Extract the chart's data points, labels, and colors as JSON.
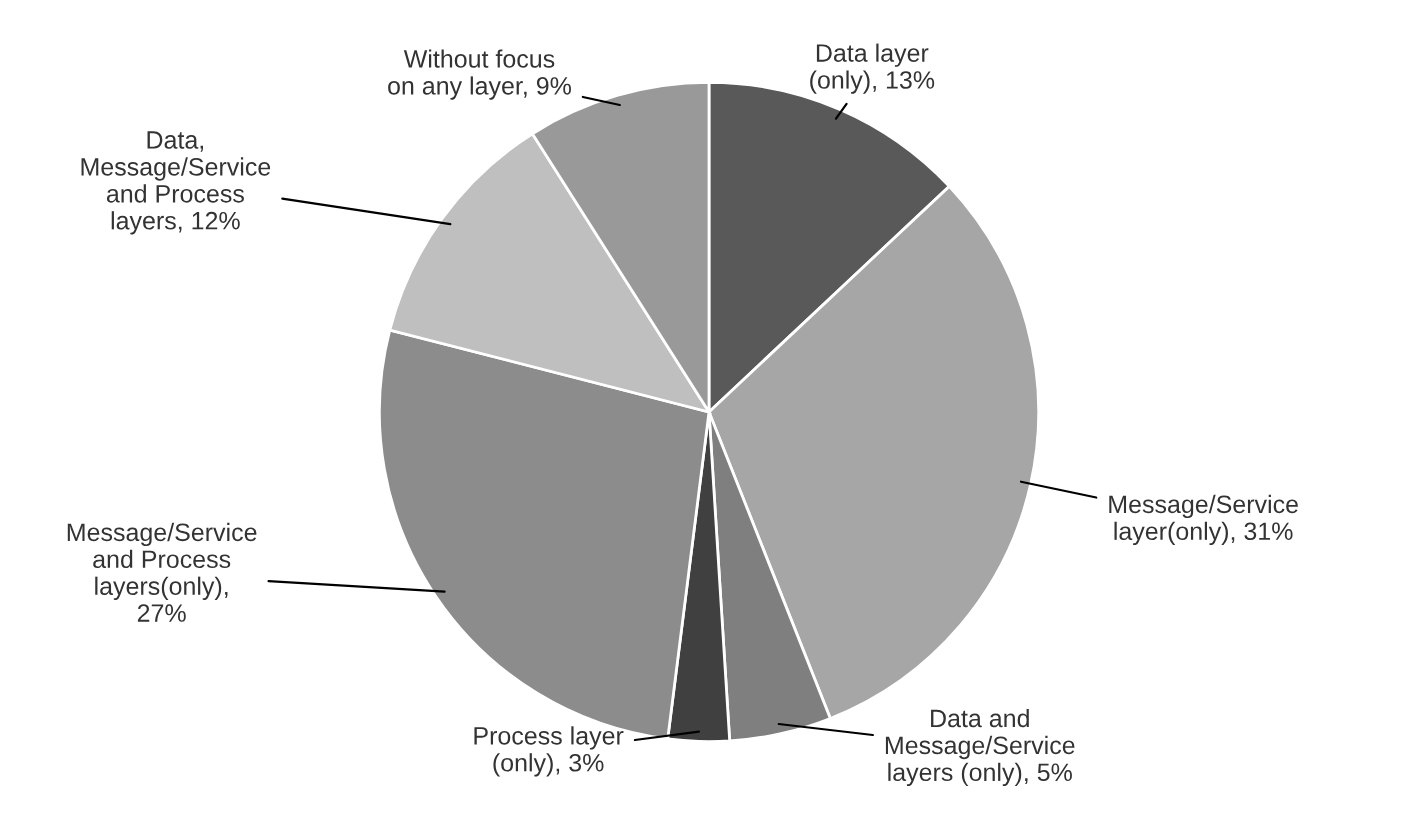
{
  "chart_data": {
    "type": "pie",
    "categories": [
      "Data layer\n(only), 13%",
      "Message/Service\nlayer(only), 31%",
      "Data and\nMessage/Service\nlayers (only), 5%",
      "Process layer\n(only), 3%",
      "Message/Service\nand Process\nlayers(only),\n27%",
      "Data,\nMessage/Service\nand Process\nlayers, 12%",
      "Without focus\non any layer, 9%"
    ],
    "values": [
      13,
      31,
      5,
      3,
      27,
      12,
      9
    ],
    "colors": [
      "#595959",
      "#a6a6a6",
      "#7f7f7f",
      "#404040",
      "#8c8c8c",
      "#bfbfbf",
      "#999999"
    ],
    "legend": false
  }
}
